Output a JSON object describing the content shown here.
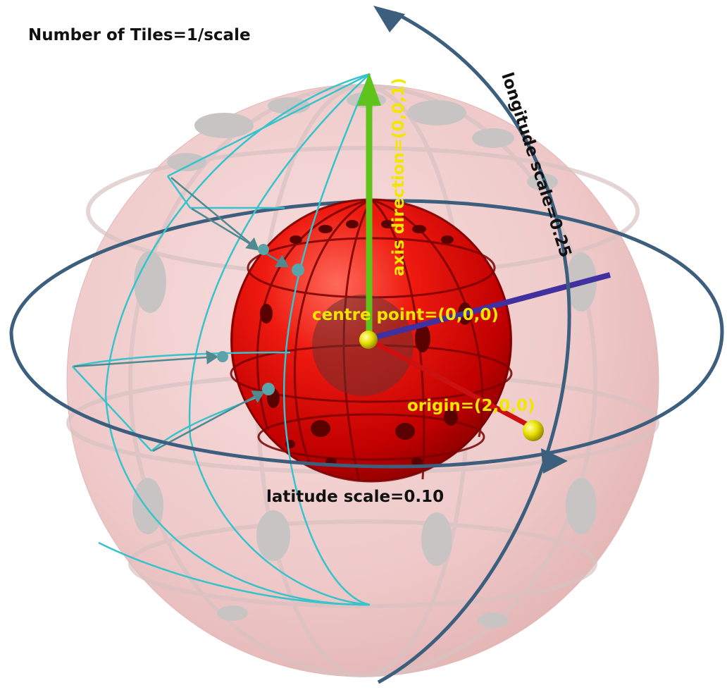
{
  "labels": {
    "title": "Number of Tiles=1/scale",
    "axis_direction": "axis direction=(0,0,1)",
    "longitude_scale": "longitude scale=0.25",
    "centre_point": "centre point=(0,0,0)",
    "origin": "origin=(2,0,0)",
    "latitude_scale": "latitude scale=0.10"
  },
  "colors": {
    "outer_sphere": "#f2cccc",
    "inner_sphere": "#e00000",
    "holes": "#5a0000",
    "outer_spots": "#c9c4c4",
    "wire_tile": "#37c3cc",
    "scale_arrows": "#3d5f7e",
    "axis_arrow": "#5fc31b",
    "x_axis": "#cc1010",
    "y_axis": "#4030a0",
    "marker_ball": "#e8e000",
    "label_yellow": "#f2e600",
    "label_dark": "#111111"
  }
}
